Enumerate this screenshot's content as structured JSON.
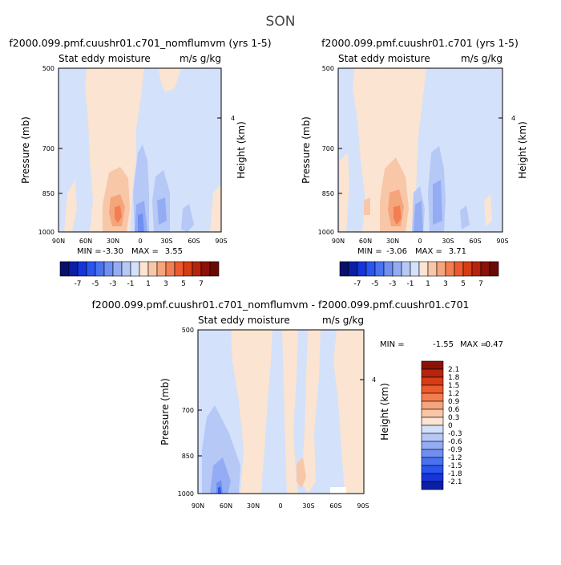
{
  "page_title": "SON",
  "palette": {
    "neg": [
      "#08106b",
      "#0a1fa6",
      "#1535d8",
      "#2a55ee",
      "#4a72f0",
      "#6f90f2",
      "#94acf3",
      "#b6c8f6",
      "#d3e1fb"
    ],
    "pos": [
      "#fbe4d1",
      "#f8c7a8",
      "#f5a57c",
      "#f37e52",
      "#ec5a2e",
      "#d43d15",
      "#b5240d",
      "#8a1208",
      "#6a0a04"
    ]
  },
  "panels": [
    {
      "title": "f2000.099.pmf.cuushr01.c701_nomflumvm (yrs 1-5)",
      "left_label": "Stat eddy moisture",
      "right_label": "m/s g/kg",
      "min_label": "MIN =",
      "min_value": "-3.30",
      "max_label": "MAX =",
      "max_value": "3.55"
    },
    {
      "title": "f2000.099.pmf.cuushr01.c701 (yrs 1-5)",
      "left_label": "Stat eddy moisture",
      "right_label": "m/s g/kg",
      "min_label": "MIN =",
      "min_value": "-3.06",
      "max_label": "MAX =",
      "max_value": "3.71"
    },
    {
      "title": "f2000.099.pmf.cuushr01.c701_nomflumvm - f2000.099.pmf.cuushr01.c701",
      "left_label": "Stat eddy moisture",
      "right_label": "m/s g/kg",
      "min_label": "MIN =",
      "min_value": "-1.55",
      "max_label": "MAX =",
      "max_value": "0.47"
    }
  ],
  "axes": {
    "ylabel": "Pressure (mb)",
    "ylabel_right": "Height (km)",
    "yticks": [
      "500",
      "700",
      "850",
      "1000"
    ],
    "yticks_right": [
      "4"
    ],
    "xticks": [
      "90N",
      "60N",
      "30N",
      "0",
      "30S",
      "60S",
      "90S"
    ]
  },
  "colorbar_top": {
    "labels": [
      "-7",
      "-5",
      "-3",
      "-1",
      "1",
      "3",
      "5",
      "7"
    ]
  },
  "colorbar_diff": {
    "labels": [
      "2.1",
      "1.8",
      "1.5",
      "1.2",
      "0.9",
      "0.6",
      "0.3",
      "0",
      "-0.3",
      "-0.6",
      "-0.9",
      "-1.2",
      "-1.5",
      "-1.8",
      "-2.1"
    ]
  },
  "chart_data": [
    {
      "type": "heatmap",
      "title": "f2000.099.pmf.cuushr01.c701_nomflumvm (yrs 1-5)",
      "xlabel": "",
      "ylabel": "Pressure (mb)",
      "x_range": [
        "90N",
        "90S"
      ],
      "y_range": [
        500,
        1000
      ],
      "min": -3.3,
      "max": 3.55,
      "levels": [
        -7,
        -5,
        -3,
        -1,
        1,
        3,
        5,
        7
      ],
      "features": [
        {
          "lat": 30,
          "p": 940,
          "value": 3.55
        },
        {
          "lat": 3,
          "p": 950,
          "value": -3.3
        }
      ]
    },
    {
      "type": "heatmap",
      "title": "f2000.099.pmf.cuushr01.c701 (yrs 1-5)",
      "xlabel": "",
      "ylabel": "Pressure (mb)",
      "x_range": [
        "90N",
        "90S"
      ],
      "y_range": [
        500,
        1000
      ],
      "min": -3.06,
      "max": 3.71,
      "levels": [
        -7,
        -5,
        -3,
        -1,
        1,
        3,
        5,
        7
      ],
      "features": [
        {
          "lat": 30,
          "p": 940,
          "value": 3.71
        },
        {
          "lat": 3,
          "p": 950,
          "value": -3.06
        }
      ]
    },
    {
      "type": "heatmap",
      "title": "f2000.099.pmf.cuushr01.c701_nomflumvm - f2000.099.pmf.cuushr01.c701",
      "xlabel": "",
      "ylabel": "Pressure (mb)",
      "x_range": [
        "90N",
        "90S"
      ],
      "y_range": [
        500,
        1000
      ],
      "min": -1.55,
      "max": 0.47,
      "levels": [
        -2.1,
        -1.8,
        -1.5,
        -1.2,
        -0.9,
        -0.6,
        -0.3,
        0,
        0.3,
        0.6,
        0.9,
        1.2,
        1.5,
        1.8,
        2.1
      ],
      "features": [
        {
          "lat": 65,
          "p": 985,
          "value": -1.55
        },
        {
          "lat": -30,
          "p": 920,
          "value": 0.47
        }
      ]
    }
  ]
}
